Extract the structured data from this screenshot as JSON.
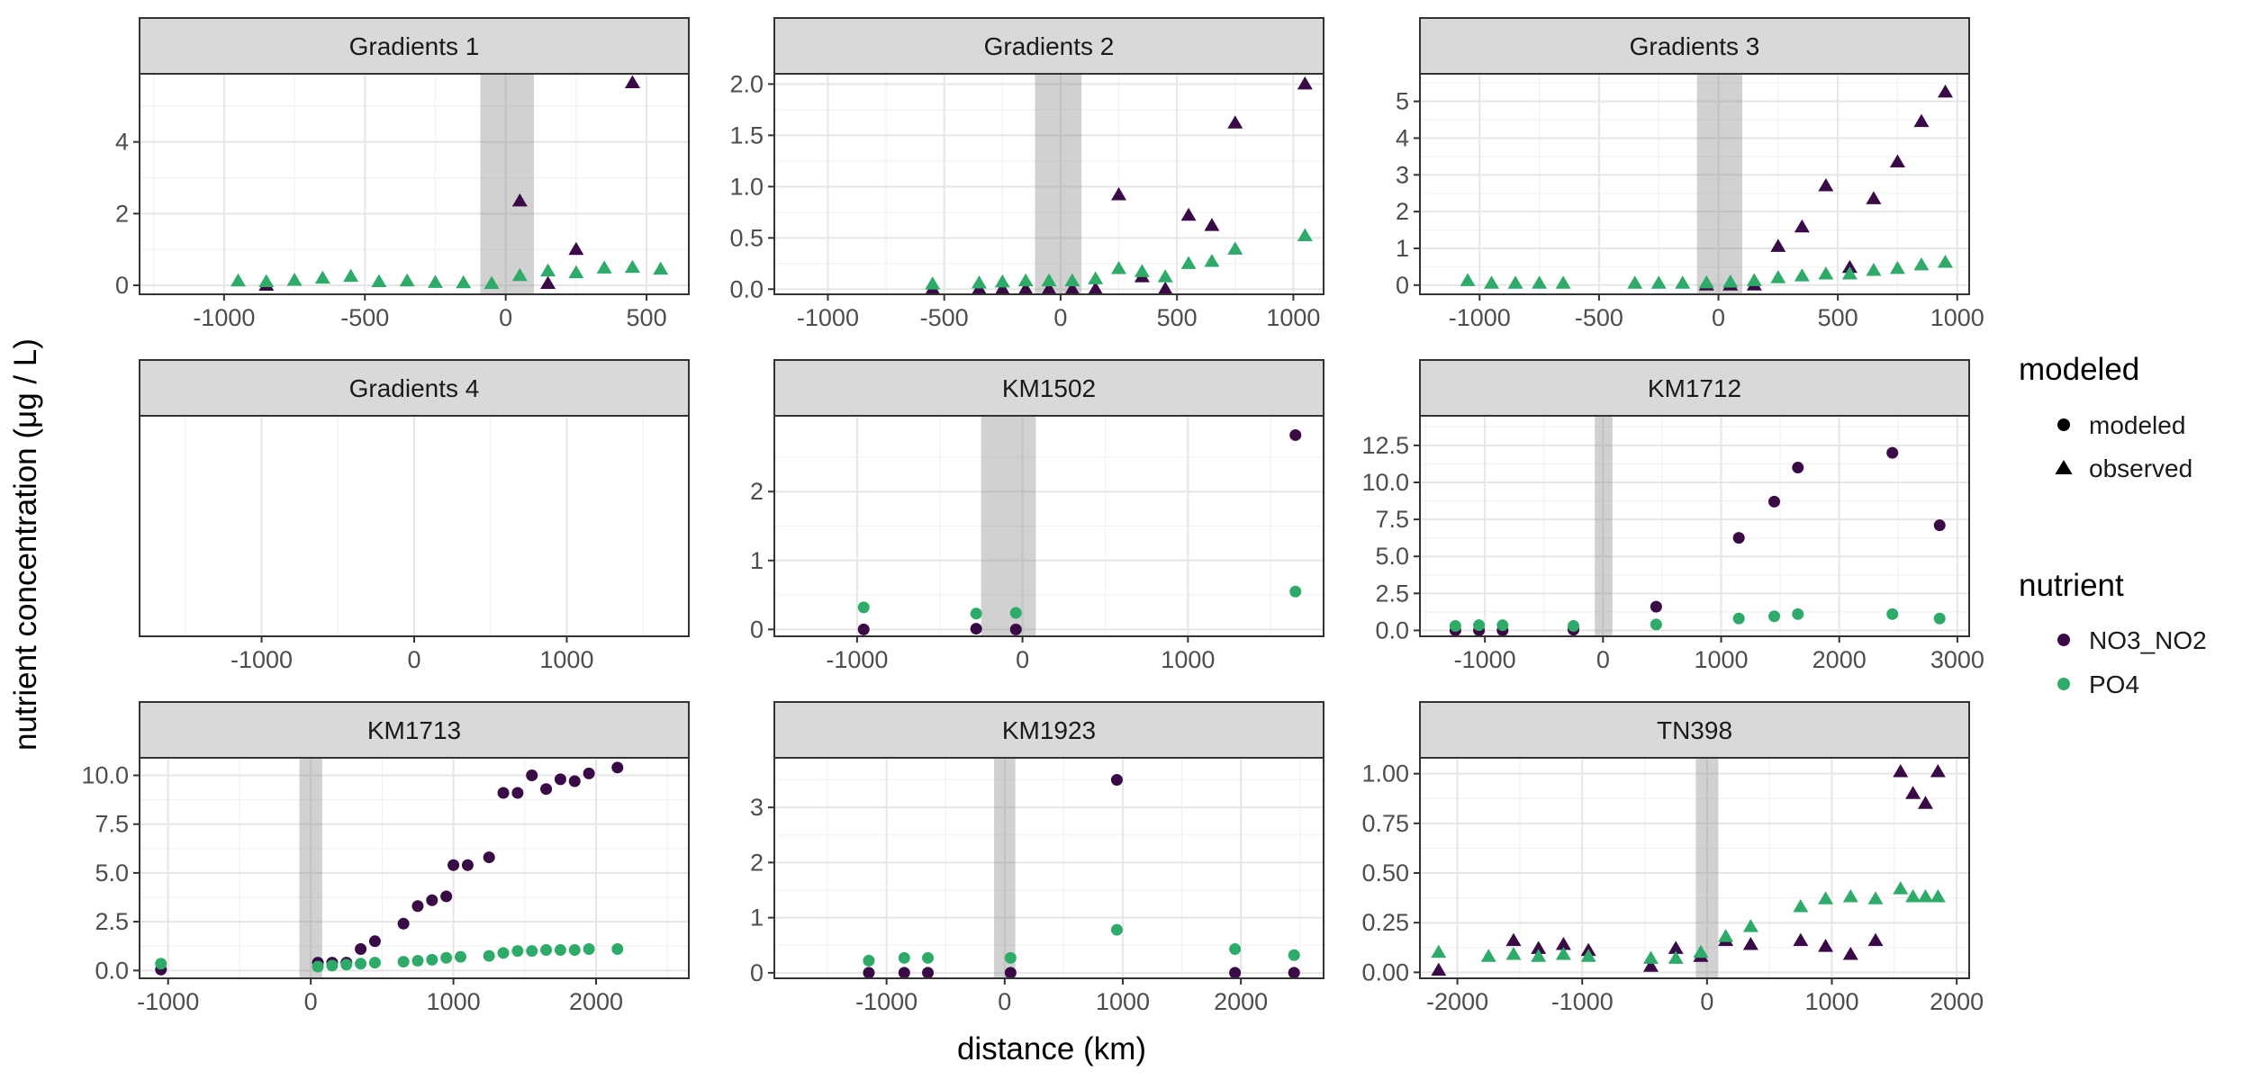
{
  "figure": {
    "ylabel": "nutrient concentration (μg / L)",
    "xlabel": "distance (km)"
  },
  "legend": {
    "shape_title": "modeled",
    "shape_items": [
      {
        "label": "modeled",
        "shape": "circle"
      },
      {
        "label": "observed",
        "shape": "triangle"
      }
    ],
    "color_title": "nutrient",
    "color_items": [
      {
        "label": "NO3_NO2",
        "color": "#3a0a46"
      },
      {
        "label": "PO4",
        "color": "#2eab69"
      }
    ]
  },
  "chart_data": [
    {
      "type": "scatter",
      "title": "Gradients 1",
      "xlim": [
        -1300,
        650
      ],
      "xticks": [
        -1000,
        -500,
        0,
        500
      ],
      "ylim": [
        -0.25,
        5.9
      ],
      "yticks": [
        0,
        2,
        4
      ],
      "band": [
        -90,
        100
      ],
      "series": [
        {
          "name": "NO3_NO2",
          "shape": "triangle",
          "color": "#3a0a46",
          "points": [
            [
              -850,
              0
            ],
            [
              50,
              2.35
            ],
            [
              150,
              0.05
            ],
            [
              250,
              1.0
            ],
            [
              450,
              5.65
            ]
          ]
        },
        {
          "name": "PO4",
          "shape": "triangle",
          "color": "#2eab69",
          "points": [
            [
              -950,
              0.12
            ],
            [
              -850,
              0.1
            ],
            [
              -750,
              0.14
            ],
            [
              -650,
              0.2
            ],
            [
              -550,
              0.25
            ],
            [
              -450,
              0.1
            ],
            [
              -350,
              0.12
            ],
            [
              -250,
              0.08
            ],
            [
              -150,
              0.07
            ],
            [
              -50,
              0.05
            ],
            [
              50,
              0.27
            ],
            [
              150,
              0.4
            ],
            [
              250,
              0.35
            ],
            [
              350,
              0.48
            ],
            [
              450,
              0.5
            ],
            [
              550,
              0.45
            ]
          ]
        }
      ]
    },
    {
      "type": "scatter",
      "title": "Gradients 2",
      "xlim": [
        -1230,
        1130
      ],
      "xticks": [
        -1000,
        -500,
        0,
        500,
        1000
      ],
      "ylim": [
        -0.05,
        2.1
      ],
      "yticks": [
        0,
        0.5,
        1.0,
        1.5,
        2.0
      ],
      "band": [
        -110,
        90
      ],
      "series": [
        {
          "name": "NO3_NO2",
          "shape": "triangle",
          "color": "#3a0a46",
          "points": [
            [
              -550,
              0
            ],
            [
              -350,
              0
            ],
            [
              -250,
              0
            ],
            [
              -150,
              0
            ],
            [
              -50,
              0
            ],
            [
              50,
              0
            ],
            [
              150,
              0
            ],
            [
              250,
              0.92
            ],
            [
              350,
              0.12
            ],
            [
              450,
              0
            ],
            [
              550,
              0.72
            ],
            [
              650,
              0.62
            ],
            [
              750,
              1.62
            ],
            [
              1050,
              2.0
            ]
          ]
        },
        {
          "name": "PO4",
          "shape": "triangle",
          "color": "#2eab69",
          "points": [
            [
              -550,
              0.05
            ],
            [
              -350,
              0.06
            ],
            [
              -250,
              0.07
            ],
            [
              -150,
              0.08
            ],
            [
              -50,
              0.08
            ],
            [
              50,
              0.08
            ],
            [
              150,
              0.1
            ],
            [
              250,
              0.2
            ],
            [
              350,
              0.17
            ],
            [
              450,
              0.12
            ],
            [
              550,
              0.25
            ],
            [
              650,
              0.27
            ],
            [
              750,
              0.39
            ],
            [
              1050,
              0.52
            ]
          ]
        }
      ]
    },
    {
      "type": "scatter",
      "title": "Gradients 3",
      "xlim": [
        -1250,
        1050
      ],
      "xticks": [
        -1000,
        -500,
        0,
        500,
        1000
      ],
      "ylim": [
        -0.25,
        5.75
      ],
      "yticks": [
        0,
        1,
        2,
        3,
        4,
        5
      ],
      "band": [
        -90,
        100
      ],
      "series": [
        {
          "name": "NO3_NO2",
          "shape": "triangle",
          "color": "#3a0a46",
          "points": [
            [
              -50,
              0
            ],
            [
              50,
              0
            ],
            [
              150,
              0
            ],
            [
              250,
              1.05
            ],
            [
              350,
              1.58
            ],
            [
              450,
              2.7
            ],
            [
              550,
              0.48
            ],
            [
              650,
              2.35
            ],
            [
              750,
              3.35
            ],
            [
              850,
              4.45
            ],
            [
              950,
              5.25
            ]
          ]
        },
        {
          "name": "PO4",
          "shape": "triangle",
          "color": "#2eab69",
          "points": [
            [
              -1050,
              0.12
            ],
            [
              -950,
              0.05
            ],
            [
              -850,
              0.05
            ],
            [
              -750,
              0.05
            ],
            [
              -650,
              0.05
            ],
            [
              -350,
              0.05
            ],
            [
              -250,
              0.05
            ],
            [
              -150,
              0.05
            ],
            [
              -50,
              0.06
            ],
            [
              50,
              0.08
            ],
            [
              150,
              0.12
            ],
            [
              250,
              0.2
            ],
            [
              350,
              0.25
            ],
            [
              450,
              0.3
            ],
            [
              550,
              0.3
            ],
            [
              650,
              0.4
            ],
            [
              750,
              0.45
            ],
            [
              850,
              0.55
            ],
            [
              950,
              0.62
            ]
          ]
        }
      ]
    },
    {
      "type": "scatter",
      "title": "Gradients 4",
      "xlim": [
        -1800,
        1800
      ],
      "xticks": [
        -1000,
        0,
        1000
      ],
      "ylim": [
        0,
        1
      ],
      "yticks": [],
      "band": null,
      "series": []
    },
    {
      "type": "scatter",
      "title": "KM1502",
      "xlim": [
        -1500,
        1820
      ],
      "xticks": [
        -1000,
        0,
        1000
      ],
      "ylim": [
        -0.1,
        3.1
      ],
      "yticks": [
        0,
        1,
        2
      ],
      "band": [
        -250,
        80
      ],
      "series": [
        {
          "name": "NO3_NO2",
          "shape": "circle",
          "color": "#3a0a46",
          "points": [
            [
              -960,
              0
            ],
            [
              -280,
              0.01
            ],
            [
              -40,
              0
            ],
            [
              1650,
              2.82
            ]
          ]
        },
        {
          "name": "PO4",
          "shape": "circle",
          "color": "#2eab69",
          "points": [
            [
              -960,
              0.32
            ],
            [
              -280,
              0.23
            ],
            [
              -40,
              0.24
            ],
            [
              1650,
              0.55
            ]
          ]
        }
      ]
    },
    {
      "type": "scatter",
      "title": "KM1712",
      "xlim": [
        -1550,
        3100
      ],
      "xticks": [
        -1000,
        0,
        1000,
        2000,
        3000
      ],
      "ylim": [
        -0.4,
        14.5
      ],
      "yticks": [
        0,
        2.5,
        5.0,
        7.5,
        10.0,
        12.5
      ],
      "band": [
        -70,
        80
      ],
      "series": [
        {
          "name": "NO3_NO2",
          "shape": "circle",
          "color": "#3a0a46",
          "points": [
            [
              -1250,
              0
            ],
            [
              -1050,
              0
            ],
            [
              -850,
              0
            ],
            [
              -250,
              0.05
            ],
            [
              450,
              1.6
            ],
            [
              1150,
              6.25
            ],
            [
              1450,
              8.7
            ],
            [
              1650,
              11.0
            ],
            [
              2450,
              12.0
            ],
            [
              2850,
              7.1
            ]
          ]
        },
        {
          "name": "PO4",
          "shape": "circle",
          "color": "#2eab69",
          "points": [
            [
              -1250,
              0.3
            ],
            [
              -1050,
              0.35
            ],
            [
              -850,
              0.35
            ],
            [
              -250,
              0.3
            ],
            [
              450,
              0.4
            ],
            [
              1150,
              0.8
            ],
            [
              1450,
              0.95
            ],
            [
              1650,
              1.1
            ],
            [
              2450,
              1.1
            ],
            [
              2850,
              0.8
            ]
          ]
        }
      ]
    },
    {
      "type": "scatter",
      "title": "KM1713",
      "xlim": [
        -1200,
        2650
      ],
      "xticks": [
        -1000,
        0,
        1000,
        2000
      ],
      "ylim": [
        -0.4,
        10.9
      ],
      "yticks": [
        0,
        2.5,
        5.0,
        7.5,
        10.0
      ],
      "band": [
        -80,
        80
      ],
      "series": [
        {
          "name": "NO3_NO2",
          "shape": "circle",
          "color": "#3a0a46",
          "points": [
            [
              -1050,
              0.05
            ],
            [
              50,
              0.4
            ],
            [
              150,
              0.4
            ],
            [
              250,
              0.4
            ],
            [
              350,
              1.1
            ],
            [
              450,
              1.5
            ],
            [
              650,
              2.4
            ],
            [
              750,
              3.3
            ],
            [
              850,
              3.6
            ],
            [
              950,
              3.8
            ],
            [
              1000,
              5.4
            ],
            [
              1100,
              5.4
            ],
            [
              1250,
              5.8
            ],
            [
              1350,
              9.1
            ],
            [
              1450,
              9.1
            ],
            [
              1550,
              10.0
            ],
            [
              1650,
              9.3
            ],
            [
              1750,
              9.8
            ],
            [
              1850,
              9.7
            ],
            [
              1950,
              10.1
            ],
            [
              2150,
              10.4
            ]
          ]
        },
        {
          "name": "PO4",
          "shape": "circle",
          "color": "#2eab69",
          "points": [
            [
              -1050,
              0.35
            ],
            [
              50,
              0.2
            ],
            [
              150,
              0.25
            ],
            [
              250,
              0.3
            ],
            [
              350,
              0.35
            ],
            [
              450,
              0.4
            ],
            [
              650,
              0.45
            ],
            [
              750,
              0.5
            ],
            [
              850,
              0.55
            ],
            [
              950,
              0.65
            ],
            [
              1050,
              0.7
            ],
            [
              1250,
              0.75
            ],
            [
              1350,
              0.9
            ],
            [
              1450,
              1.0
            ],
            [
              1550,
              1.0
            ],
            [
              1650,
              1.05
            ],
            [
              1750,
              1.05
            ],
            [
              1850,
              1.05
            ],
            [
              1950,
              1.1
            ],
            [
              2150,
              1.1
            ]
          ]
        }
      ]
    },
    {
      "type": "scatter",
      "title": "KM1923",
      "xlim": [
        -1950,
        2700
      ],
      "xticks": [
        -1000,
        0,
        1000,
        2000
      ],
      "ylim": [
        -0.1,
        3.9
      ],
      "yticks": [
        0,
        1,
        2,
        3
      ],
      "band": [
        -90,
        90
      ],
      "series": [
        {
          "name": "NO3_NO2",
          "shape": "circle",
          "color": "#3a0a46",
          "points": [
            [
              -1150,
              0
            ],
            [
              -850,
              0
            ],
            [
              -650,
              0
            ],
            [
              50,
              0
            ],
            [
              950,
              3.5
            ],
            [
              1950,
              0
            ],
            [
              2450,
              0
            ]
          ]
        },
        {
          "name": "PO4",
          "shape": "circle",
          "color": "#2eab69",
          "points": [
            [
              -1150,
              0.22
            ],
            [
              -850,
              0.27
            ],
            [
              -650,
              0.27
            ],
            [
              50,
              0.27
            ],
            [
              950,
              0.78
            ],
            [
              1950,
              0.43
            ],
            [
              2450,
              0.32
            ]
          ]
        }
      ]
    },
    {
      "type": "scatter",
      "title": "TN398",
      "xlim": [
        -2300,
        2100
      ],
      "xticks": [
        -2000,
        -1000,
        0,
        1000,
        2000
      ],
      "ylim": [
        -0.03,
        1.08
      ],
      "yticks": [
        0,
        0.25,
        0.5,
        0.75,
        1.0
      ],
      "band": [
        -90,
        90
      ],
      "series": [
        {
          "name": "NO3_NO2",
          "shape": "triangle",
          "color": "#3a0a46",
          "points": [
            [
              -2150,
              0.01
            ],
            [
              -1550,
              0.16
            ],
            [
              -1350,
              0.12
            ],
            [
              -1150,
              0.14
            ],
            [
              -950,
              0.11
            ],
            [
              -450,
              0.03
            ],
            [
              -250,
              0.12
            ],
            [
              -50,
              0.08
            ],
            [
              150,
              0.16
            ],
            [
              350,
              0.14
            ],
            [
              750,
              0.16
            ],
            [
              950,
              0.13
            ],
            [
              1150,
              0.09
            ],
            [
              1350,
              0.16
            ],
            [
              1550,
              1.01
            ],
            [
              1650,
              0.9
            ],
            [
              1750,
              0.85
            ],
            [
              1850,
              1.01
            ]
          ]
        },
        {
          "name": "PO4",
          "shape": "triangle",
          "color": "#2eab69",
          "points": [
            [
              -2150,
              0.1
            ],
            [
              -1750,
              0.08
            ],
            [
              -1550,
              0.09
            ],
            [
              -1350,
              0.08
            ],
            [
              -1150,
              0.09
            ],
            [
              -950,
              0.08
            ],
            [
              -450,
              0.07
            ],
            [
              -250,
              0.07
            ],
            [
              -50,
              0.1
            ],
            [
              150,
              0.18
            ],
            [
              350,
              0.23
            ],
            [
              750,
              0.33
            ],
            [
              950,
              0.37
            ],
            [
              1150,
              0.38
            ],
            [
              1350,
              0.37
            ],
            [
              1550,
              0.42
            ],
            [
              1650,
              0.38
            ],
            [
              1750,
              0.38
            ],
            [
              1850,
              0.38
            ]
          ]
        }
      ]
    }
  ]
}
